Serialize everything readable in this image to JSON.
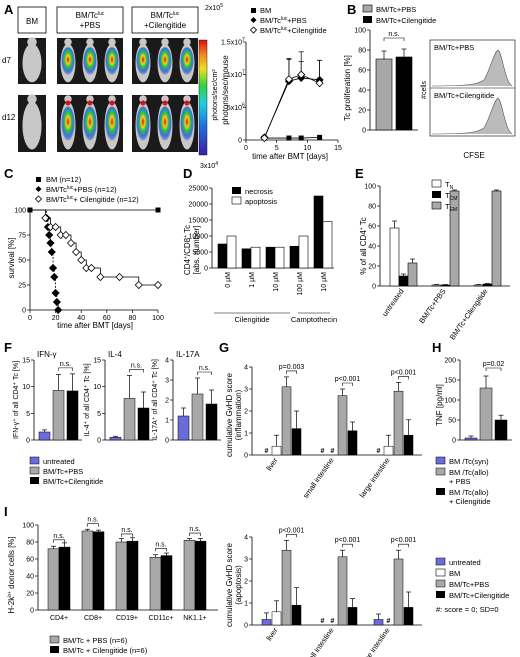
{
  "figure": {
    "panels": {
      "A": {
        "letter": "A",
        "groups": [
          "BM",
          "BM/Tc",
          "+PBS",
          "BM/Tc",
          "+Cilengitide"
        ],
        "sup": "luc",
        "rows": [
          "d7",
          "d12"
        ],
        "scale_max": "2x10",
        "scale_max_exp": "5",
        "scale_min": "3x10",
        "scale_min_exp": "4",
        "scale_unit": "photons/sec/cm²",
        "ylabel": "photons/sec/mouse",
        "xlabel": "time after BMT [days]",
        "legend": [
          "BM",
          "BM/Tc",
          "+PBS",
          "BM/Tc",
          "+Cilengitide"
        ]
      },
      "B": {
        "letter": "B",
        "legend": [
          "BM/Tc+PBS",
          "BM/Tc+Cilengitide"
        ],
        "ylabel": "Tc proliferation [%]",
        "sig": "n.s.",
        "hist_labels": [
          "BM/Tc+PBS",
          "BM/Tc+Cilengitide"
        ],
        "hist_ylabel": "#cells",
        "hist_xlabel": "CFSE"
      },
      "C": {
        "letter": "C",
        "legend": [
          "BM (n=12)",
          "BM/Tc",
          "+PBS (n=12)",
          "BM/Tc",
          "+ Cilengitide (n=12)"
        ],
        "ylabel": "survival [%]",
        "xlabel": "time after BMT [days]"
      },
      "D": {
        "letter": "D",
        "legend": [
          "necrosis",
          "apoptosis"
        ],
        "ylabel1": "CD4",
        "ylabel2": "/CD8",
        "ylabel3": " Tc",
        "ylabel4": "[abs. number]",
        "groups": [
          "Cilengitide",
          "Camptothecin"
        ]
      },
      "E": {
        "letter": "E",
        "legend": [
          "T",
          "T",
          "T"
        ],
        "legend_sub": [
          "N",
          "CM",
          "EM"
        ],
        "ylabel": "% of all CD4",
        "ylabel_end": " Tc"
      },
      "F": {
        "letter": "F",
        "titles": [
          "IFN-γ",
          "IL-4",
          "IL-17A"
        ],
        "ylabels": [
          "IFN-γ",
          "of all CD4",
          "Tc [%]",
          "IL-4",
          "of all CD4",
          "Tc [%]",
          "IL-17A",
          "of all CD4",
          "Tc [%]"
        ],
        "sig": "n.s.",
        "legend": [
          "untreated",
          "BM/Tc+PBS",
          "BM/Tc+Cilengitide"
        ]
      },
      "G": {
        "letter": "G",
        "ylabel": "cumulative GvHD score",
        "ylabel2": "(inflammation)",
        "ylabel_b2": "(apoptosis)",
        "sig_top": [
          "p=0.003",
          "p<0.001",
          "p<0.001"
        ],
        "sig_bottom": [
          "p<0.001",
          "p<0.001",
          "p<0.001"
        ],
        "hash": "#",
        "legend": [
          "untreated",
          "BM",
          "BM/Tc+PBS",
          "BM/Tc+Cilengitide"
        ],
        "note": "#:  score = 0; SD=0"
      },
      "H": {
        "letter": "H",
        "ylabel": "TNF [pg/ml]",
        "sig": "p=0.02",
        "legend": [
          "BM /Tc(syn)",
          "BM /Tc(allo)",
          "+ PBS",
          "BM /Tc(allo)",
          "+ Cilengitide"
        ]
      },
      "I": {
        "letter": "I",
        "ylabel": "H-2k",
        "ylabel2": " donor cells [%]",
        "sig": "n.s.",
        "legend": [
          "BM/Tc + PBS (n=6)",
          "BM/Tc + Cilengitide (n=6)"
        ]
      }
    }
  },
  "chart_data": [
    {
      "panel": "A",
      "type": "line",
      "xlabel": "time after BMT [days]",
      "ylabel": "photons/sec/mouse",
      "ylim": [
        0,
        15000000
      ],
      "xlim": [
        0,
        15
      ],
      "yticks": [
        0,
        5000000,
        10000000,
        15000000
      ],
      "ytick_labels": [
        "0",
        "5x10",
        "1x10",
        "1.5x10"
      ],
      "ytick_exp": [
        "",
        "6",
        "7",
        "7"
      ],
      "xticks": [
        0,
        5,
        10,
        15
      ],
      "series": [
        {
          "name": "BM",
          "x": [
            3,
            7,
            9,
            12
          ],
          "y": [
            300000,
            300000,
            300000,
            400000
          ]
        },
        {
          "name": "BM/Tc luc +PBS",
          "x": [
            3,
            7,
            9,
            12
          ],
          "y": [
            400000,
            9000000,
            9500000,
            9200000
          ]
        },
        {
          "name": "BM/Tc luc +Cilengitide",
          "x": [
            3,
            7,
            9,
            12
          ],
          "y": [
            300000,
            9300000,
            10000000,
            8700000
          ]
        }
      ]
    },
    {
      "panel": "B",
      "type": "bar",
      "categories": [
        "BM/Tc+PBS",
        "BM/Tc+Cilengitide"
      ],
      "values": [
        71,
        73
      ],
      "errors": [
        8,
        8
      ],
      "ylim": [
        0,
        100
      ],
      "yticks": [
        0,
        20,
        40,
        60,
        80,
        100
      ]
    },
    {
      "panel": "C",
      "type": "line",
      "xlabel": "time after BMT [days]",
      "ylabel": "survival [%]",
      "ylim": [
        0,
        100
      ],
      "xlim": [
        0,
        100
      ],
      "yticks": [
        0,
        25,
        50,
        75,
        100
      ],
      "xticks": [
        0,
        20,
        40,
        60,
        80,
        100
      ],
      "series": [
        {
          "name": "BM (n=12)",
          "x": [
            0,
            100
          ],
          "y": [
            100,
            100
          ]
        },
        {
          "name": "BM/Tc luc +PBS (n=12)",
          "x": [
            0,
            13,
            14,
            15,
            16,
            17,
            18,
            19,
            20,
            21,
            22
          ],
          "y": [
            100,
            92,
            83,
            75,
            67,
            58,
            42,
            33,
            17,
            8,
            0
          ]
        },
        {
          "name": "BM/Tc luc + Cilengitide (n=12)",
          "x": [
            0,
            12,
            16,
            20,
            24,
            28,
            32,
            36,
            40,
            44,
            48,
            55,
            70,
            85,
            100
          ],
          "y": [
            100,
            92,
            83,
            83,
            75,
            75,
            67,
            58,
            50,
            42,
            42,
            33,
            33,
            25,
            25
          ]
        }
      ]
    },
    {
      "panel": "D",
      "type": "bar",
      "categories": [
        "0 μM",
        "1 μM",
        "10 μM",
        "100 μM",
        "10 μM"
      ],
      "groups": [
        "Cilengitide",
        "Camptothecin"
      ],
      "ylim": [
        0,
        25000
      ],
      "yticks": [
        0,
        5000,
        10000,
        15000,
        20000,
        25000
      ],
      "series": [
        {
          "name": "necrosis",
          "values": [
            7500,
            6000,
            6500,
            6800,
            22500
          ]
        },
        {
          "name": "apoptosis",
          "values": [
            10000,
            6500,
            6500,
            10000,
            14500
          ]
        }
      ]
    },
    {
      "panel": "E",
      "type": "bar",
      "categories": [
        "untreated",
        "BM/Tc+PBS",
        "BM/Tc+Cilengitide"
      ],
      "ylim": [
        0,
        100
      ],
      "yticks": [
        0,
        20,
        40,
        60,
        80,
        100
      ],
      "series": [
        {
          "name": "TN",
          "values": [
            58,
            1,
            1
          ],
          "errors": [
            7,
            0.5,
            0.5
          ]
        },
        {
          "name": "TCM",
          "values": [
            10,
            1,
            2
          ],
          "errors": [
            2,
            0.5,
            0.5
          ]
        },
        {
          "name": "TEM",
          "values": [
            23,
            95,
            95
          ],
          "errors": [
            4,
            1,
            1
          ]
        }
      ]
    },
    {
      "panel": "F",
      "type": "bar",
      "subplots": [
        {
          "title": "IFN-γ",
          "ylim": [
            0,
            15
          ],
          "yticks": [
            0,
            5,
            10,
            15
          ],
          "categories": [
            "untreated",
            "BM/Tc+PBS",
            "BM/Tc+Cilengitide"
          ],
          "values": [
            1.5,
            9.3,
            9.2
          ],
          "errors": [
            0.4,
            3,
            3.2
          ]
        },
        {
          "title": "IL-4",
          "ylim": [
            0,
            15
          ],
          "yticks": [
            0,
            5,
            10,
            15
          ],
          "categories": [
            "untreated",
            "BM/Tc+PBS",
            "BM/Tc+Cilengitide"
          ],
          "values": [
            0.5,
            7.8,
            6
          ],
          "errors": [
            0.2,
            4.3,
            3
          ]
        },
        {
          "title": "IL-17A",
          "ylim": [
            0,
            4
          ],
          "yticks": [
            0,
            1,
            2,
            3,
            4
          ],
          "categories": [
            "untreated",
            "BM/Tc+PBS",
            "BM/Tc+Cilengitide"
          ],
          "values": [
            1.2,
            2.3,
            1.8
          ],
          "errors": [
            0.4,
            0.8,
            0.7
          ]
        }
      ]
    },
    {
      "panel": "G-inflammation",
      "type": "bar",
      "categories": [
        "liver",
        "small intestine",
        "large intestine"
      ],
      "ylim": [
        0,
        4
      ],
      "yticks": [
        0,
        1,
        2,
        3,
        4
      ],
      "series": [
        {
          "name": "untreated",
          "values": [
            0,
            0,
            0
          ]
        },
        {
          "name": "BM",
          "values": [
            0.4,
            0,
            0.4
          ]
        },
        {
          "name": "BM/Tc+PBS",
          "values": [
            3.1,
            2.7,
            2.9
          ]
        },
        {
          "name": "BM/Tc+Cilengitide",
          "values": [
            1.2,
            1.1,
            0.9
          ]
        }
      ]
    },
    {
      "panel": "G-apoptosis",
      "type": "bar",
      "categories": [
        "liver",
        "small intestine",
        "large intestine"
      ],
      "ylim": [
        0,
        4
      ],
      "yticks": [
        0,
        1,
        2,
        3,
        4
      ],
      "series": [
        {
          "name": "untreated",
          "values": [
            0.25,
            0,
            0.25
          ]
        },
        {
          "name": "BM",
          "values": [
            0.6,
            0,
            0
          ]
        },
        {
          "name": "BM/Tc+PBS",
          "values": [
            3.4,
            3.1,
            3.0
          ]
        },
        {
          "name": "BM/Tc+Cilengitide",
          "values": [
            0.9,
            0.8,
            0.8
          ]
        }
      ]
    },
    {
      "panel": "H",
      "type": "bar",
      "categories": [
        "BM /Tc(syn)",
        "BM /Tc(allo) + PBS",
        "BM /Tc(allo) + Cilengitide"
      ],
      "values": [
        5,
        130,
        50
      ],
      "errors": [
        5,
        30,
        12
      ],
      "ylim": [
        0,
        200
      ],
      "yticks": [
        0,
        50,
        100,
        150,
        200
      ]
    },
    {
      "panel": "I",
      "type": "bar",
      "categories": [
        "CD4+",
        "CD8+",
        "CD19+",
        "CD11c+",
        "NK1.1+"
      ],
      "ylim": [
        0,
        100
      ],
      "yticks": [
        0,
        20,
        40,
        60,
        80,
        100
      ],
      "series": [
        {
          "name": "BM/Tc + PBS (n=6)",
          "values": [
            72,
            93,
            80,
            62,
            82
          ]
        },
        {
          "name": "BM/Tc + Cilengitide (n=6)",
          "values": [
            74,
            92,
            81,
            64,
            81
          ]
        }
      ]
    }
  ]
}
